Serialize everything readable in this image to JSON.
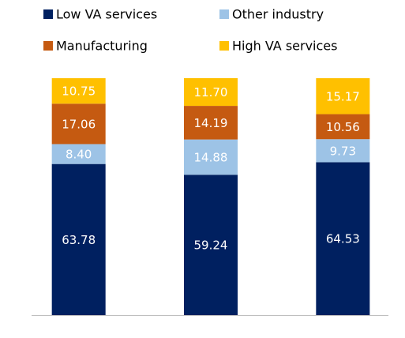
{
  "chart_data": {
    "type": "stacked-bar",
    "categories": [
      null,
      null,
      null
    ],
    "series": [
      {
        "name": "Low VA services",
        "color": "#002060",
        "values": [
          63.78,
          59.24,
          64.53
        ],
        "value_labels": [
          "63.78",
          "59.24",
          "64.53"
        ]
      },
      {
        "name": "Other industry",
        "color": "#9dc3e6",
        "values": [
          8.4,
          14.88,
          9.73
        ],
        "value_labels": [
          "8.40",
          "14.88",
          "9.73"
        ]
      },
      {
        "name": "Manufacturing",
        "color": "#c55a11",
        "values": [
          17.06,
          14.19,
          10.56
        ],
        "value_labels": [
          "17.06",
          "14.19",
          "10.56"
        ]
      },
      {
        "name": "High VA services",
        "color": "#ffc000",
        "values": [
          10.75,
          11.7,
          15.17
        ],
        "value_labels": [
          "10.75",
          "11.70",
          "15.17"
        ]
      }
    ],
    "ylim": [
      0,
      100
    ],
    "legend": "top"
  }
}
